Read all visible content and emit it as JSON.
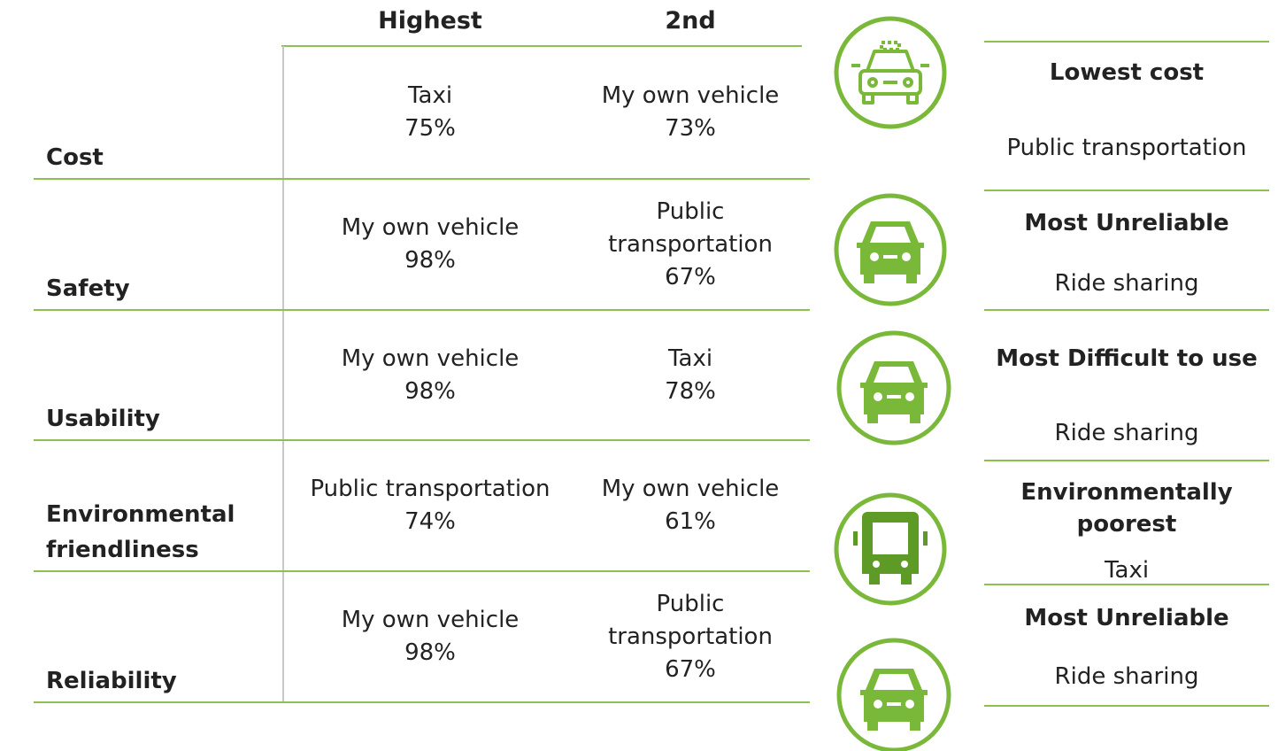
{
  "table": {
    "header": [
      "Highest",
      "2nd"
    ],
    "rows": [
      {
        "label": "Cost",
        "highest": [
          "Taxi",
          "75%"
        ],
        "second": [
          "My own vehicle",
          "73%"
        ]
      },
      {
        "label": "Safety",
        "highest": [
          "My own vehicle",
          "98%"
        ],
        "second": [
          "Public transportation",
          "67%"
        ]
      },
      {
        "label": "Usability",
        "highest": [
          "My own vehicle",
          "98%"
        ],
        "second": [
          "Taxi",
          "78%"
        ]
      },
      {
        "label": "Environmental friendliness",
        "highest": [
          "Public transportation",
          "74%"
        ],
        "second": [
          "My own vehicle",
          "61%"
        ]
      },
      {
        "label": "Reliability",
        "highest": [
          "My own vehicle",
          "98%"
        ],
        "second": [
          "Public transportation",
          "67%"
        ]
      }
    ]
  },
  "summary": [
    {
      "title": "Lowest cost",
      "answer": "Public transportation"
    },
    {
      "title": "Most Unreliable",
      "answer": "Ride sharing"
    },
    {
      "title": "Most Difficult to use",
      "answer": "Ride sharing"
    },
    {
      "title": "Environmentally poorest",
      "answer": "Taxi"
    },
    {
      "title": "Most Unreliable",
      "answer": "Ride sharing"
    }
  ]
}
